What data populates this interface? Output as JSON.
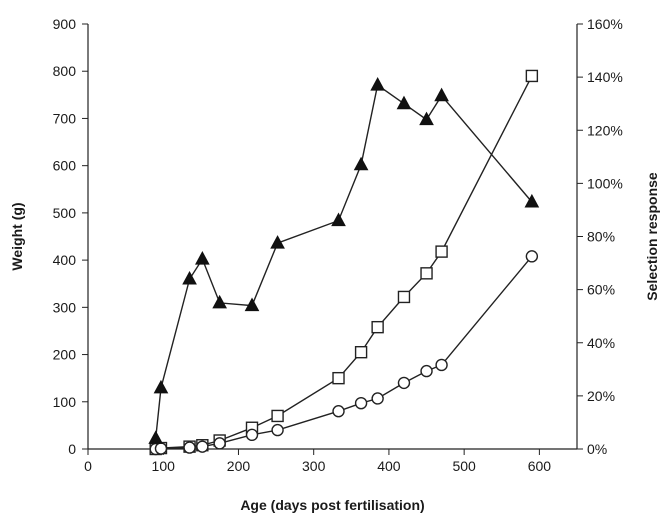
{
  "chart_data": {
    "type": "line",
    "title": "",
    "xlabel": "Age (days post fertilisation)",
    "ylabel": "Weight (g)",
    "y2label": "Selection response",
    "xlim": [
      0,
      650
    ],
    "ylim": [
      0,
      900
    ],
    "y2lim": [
      0,
      1.6
    ],
    "x_ticks": [
      "0",
      "100",
      "200",
      "300",
      "400",
      "500",
      "600"
    ],
    "y_ticks": [
      "0",
      "100",
      "200",
      "300",
      "400",
      "500",
      "600",
      "700",
      "800",
      "900"
    ],
    "y2_ticks": [
      "0%",
      "20%",
      "40%",
      "60%",
      "80%",
      "100%",
      "120%",
      "140%",
      "160%"
    ],
    "grid": false,
    "legend": "none",
    "series": [
      {
        "axis": "left",
        "marker": "square",
        "x": [
          90,
          97,
          135,
          152,
          175,
          218,
          252,
          333,
          363,
          385,
          420,
          450,
          470,
          590
        ],
        "y": [
          0,
          2,
          5,
          8,
          18,
          45,
          70,
          150,
          205,
          258,
          322,
          372,
          418,
          790
        ]
      },
      {
        "axis": "left",
        "marker": "circle",
        "x": [
          90,
          97,
          135,
          152,
          175,
          218,
          252,
          333,
          363,
          385,
          420,
          450,
          470,
          590
        ],
        "y": [
          0,
          1,
          3,
          5,
          12,
          30,
          40,
          80,
          97,
          107,
          140,
          165,
          178,
          408
        ]
      },
      {
        "axis": "right",
        "marker": "triangle",
        "x": [
          90,
          97,
          135,
          152,
          175,
          218,
          252,
          333,
          363,
          385,
          420,
          450,
          470,
          590
        ],
        "y": [
          0.04,
          0.23,
          0.64,
          0.715,
          0.55,
          0.54,
          0.775,
          0.86,
          1.07,
          1.37,
          1.3,
          1.24,
          1.33,
          0.93
        ]
      }
    ]
  }
}
